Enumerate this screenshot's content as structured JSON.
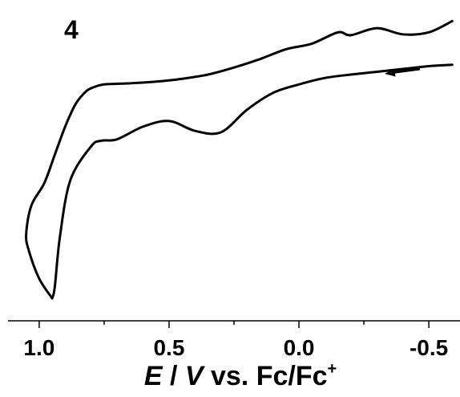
{
  "chart_data": {
    "type": "line",
    "panel_label": "4",
    "xlabel_parts": {
      "italic_e": "E",
      "sep": " / ",
      "italic_v": "V",
      "rest": " vs. Fc/Fc",
      "sup": "+"
    },
    "xlim": [
      1.12,
      -0.62
    ],
    "x_ticks": [
      {
        "value": 1.0,
        "label": "1.0"
      },
      {
        "value": 0.5,
        "label": "0.5"
      },
      {
        "value": 0.0,
        "label": "0.0"
      },
      {
        "value": -0.5,
        "label": "-0.5"
      }
    ],
    "x_minor_ticks": [
      0.75,
      0.25,
      -0.25
    ],
    "y_axis_visible": false,
    "ylim": [
      -10.2,
      1.2
    ],
    "grid": false,
    "scan_direction_arrow": "pointing toward more positive potential",
    "series": [
      {
        "segment": "forward",
        "x": [
          -0.59,
          -0.5,
          -0.4,
          -0.3,
          -0.2,
          -0.1,
          0.0,
          0.1,
          0.2,
          0.3,
          0.4,
          0.5,
          0.6,
          0.7,
          0.76,
          0.8,
          0.88,
          0.92,
          0.94,
          0.95
        ],
        "y": [
          -1.1,
          -1.15,
          -1.25,
          -1.35,
          -1.45,
          -1.57,
          -1.8,
          -2.1,
          -2.7,
          -3.5,
          -3.45,
          -3.1,
          -3.3,
          -3.75,
          -3.8,
          -4.0,
          -5.2,
          -7.2,
          -9.0,
          -9.4
        ]
      },
      {
        "segment": "reverse",
        "x": [
          0.95,
          1.0,
          1.04,
          1.05,
          1.03,
          0.98,
          0.94,
          0.9,
          0.86,
          0.82,
          0.79,
          0.75,
          0.65,
          0.55,
          0.45,
          0.35,
          0.25,
          0.15,
          0.05,
          -0.05,
          -0.15,
          -0.2,
          -0.3,
          -0.4,
          -0.5,
          -0.59
        ],
        "y": [
          -9.4,
          -8.7,
          -7.7,
          -7.1,
          -6.1,
          -5.3,
          -4.3,
          -3.3,
          -2.5,
          -2.05,
          -1.9,
          -1.8,
          -1.76,
          -1.7,
          -1.6,
          -1.45,
          -1.2,
          -0.9,
          -0.55,
          -0.35,
          0.05,
          -0.05,
          0.2,
          -0.02,
          0.05,
          0.45
        ]
      }
    ]
  }
}
